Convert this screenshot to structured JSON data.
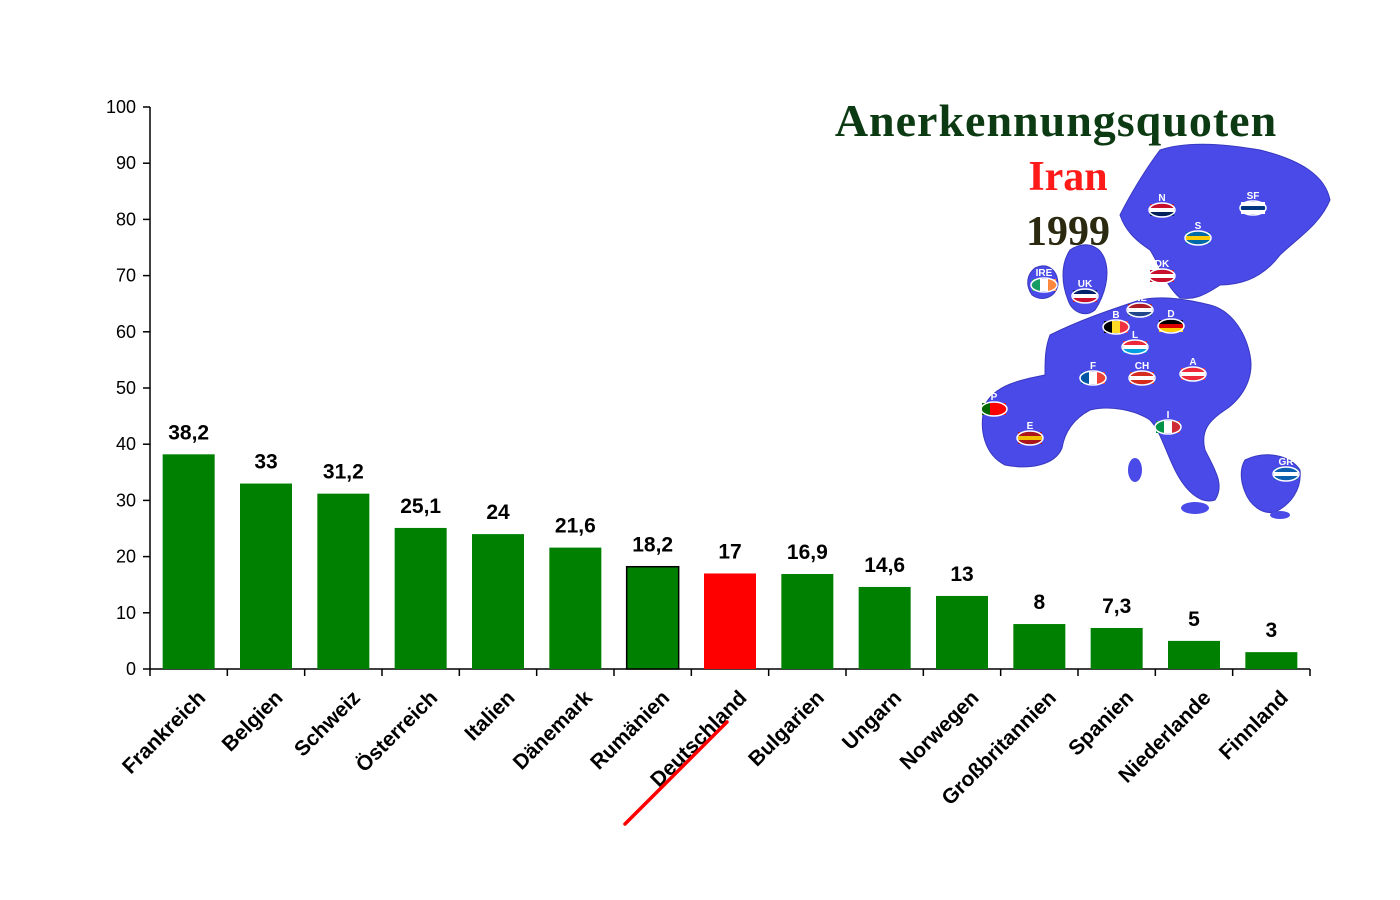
{
  "chart_data": {
    "type": "bar",
    "title": "Anerkennungsquoten",
    "subtitle_country": "Iran",
    "subtitle_year": "1999",
    "categories": [
      "Frankreich",
      "Belgien",
      "Schweiz",
      "Österreich",
      "Italien",
      "Dänemark",
      "Rumänien",
      "Deutschland",
      "Bulgarien",
      "Ungarn",
      "Norwegen",
      "Großbritannien",
      "Spanien",
      "Niederlande",
      "Finnland"
    ],
    "values": [
      38.2,
      33,
      31.2,
      25.1,
      24,
      21.6,
      18.2,
      17,
      16.9,
      14.6,
      13,
      8,
      7.3,
      5,
      3
    ],
    "value_labels": [
      "38,2",
      "33",
      "31,2",
      "25,1",
      "24",
      "21,6",
      "18,2",
      "17",
      "16,9",
      "14,6",
      "13",
      "8",
      "7,3",
      "5",
      "3"
    ],
    "highlight_category": "Deutschland",
    "ylim": [
      0,
      100
    ],
    "yticks": [
      "0",
      "10",
      "20",
      "30",
      "40",
      "50",
      "60",
      "70",
      "80",
      "90",
      "100"
    ],
    "xlabel": "",
    "ylabel": "",
    "grid": false,
    "legend": "none",
    "colors": {
      "bar": "#008000",
      "highlight": "#ff0000",
      "title": "#0c3a12",
      "country": "#ff1a1a",
      "year": "#2b2a10",
      "map_land": "#4a4ae8",
      "map_water": "#ffffff"
    }
  },
  "map": {
    "icon": "europe-map-with-flags",
    "flag_codes": [
      "N",
      "SF",
      "S",
      "DK",
      "IRE",
      "UK",
      "NL",
      "B",
      "L",
      "D",
      "F",
      "CH",
      "A",
      "P",
      "E",
      "I",
      "GR"
    ]
  }
}
